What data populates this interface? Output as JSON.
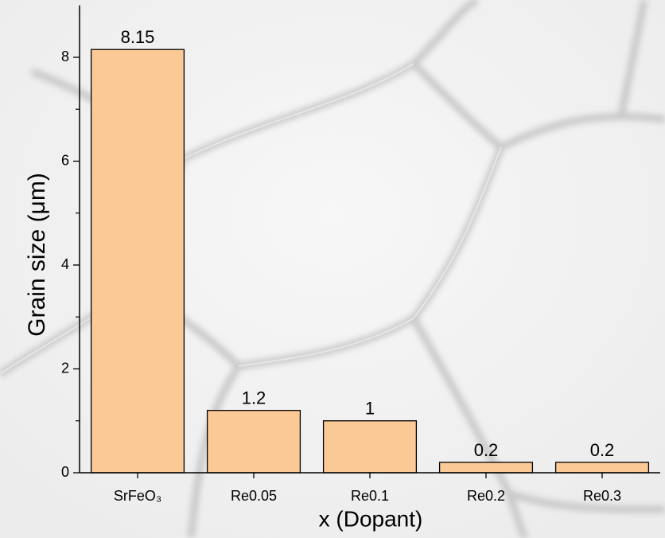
{
  "chart_data": {
    "type": "bar",
    "categories": [
      "SrFeO₃",
      "Re0.05",
      "Re0.1",
      "Re0.2",
      "Re0.3"
    ],
    "values": [
      8.15,
      1.2,
      1,
      0.2,
      0.2
    ],
    "color": "#fbc995",
    "ylabel": "Grain size (μm)",
    "xlabel": "x (Dopant)",
    "ylim": [
      0,
      9
    ],
    "yticks": [
      0,
      2,
      4,
      6,
      8
    ],
    "yticks_minor": [
      1,
      3,
      5,
      7
    ],
    "grid": false
  }
}
